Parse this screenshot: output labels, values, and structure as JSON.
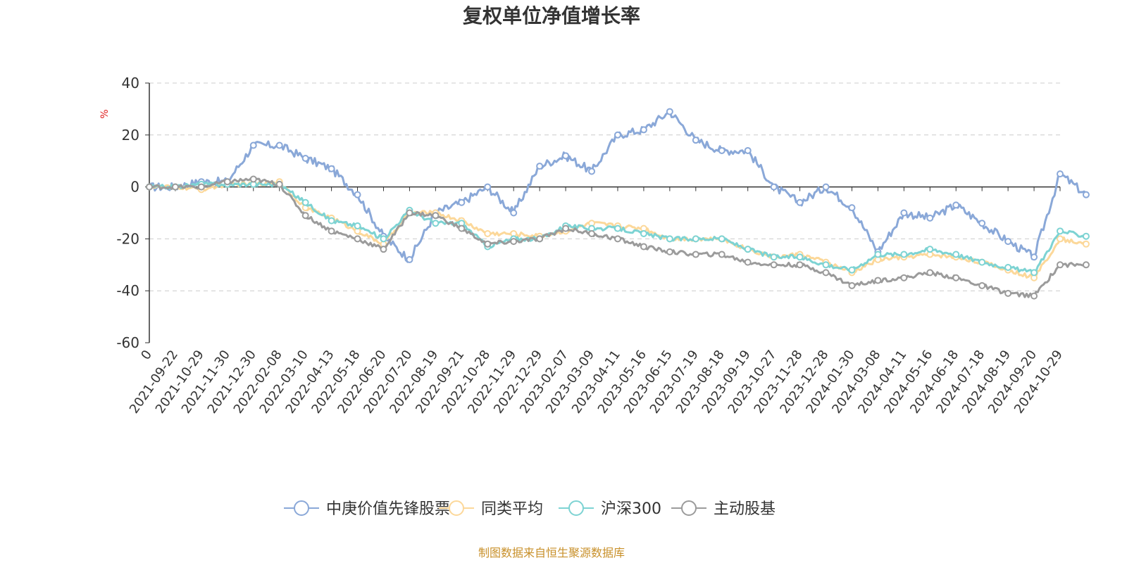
{
  "chart_data": {
    "type": "line",
    "title": "复权单位净值增长率",
    "ylabel": "%",
    "ylim": [
      -60,
      40
    ],
    "yticks": [
      "40",
      "20",
      "0",
      "-20",
      "-40",
      "-60"
    ],
    "xticks": [
      "0",
      "2021-09-22",
      "2021-10-29",
      "2021-11-30",
      "2021-12-30",
      "2022-02-08",
      "2022-03-10",
      "2022-04-13",
      "2022-05-18",
      "2022-06-20",
      "2022-07-20",
      "2022-08-19",
      "2022-09-21",
      "2022-10-28",
      "2022-11-29",
      "2022-12-29",
      "2023-02-07",
      "2023-03-09",
      "2023-04-11",
      "2023-05-16",
      "2023-06-15",
      "2023-07-19",
      "2023-08-18",
      "2023-09-19",
      "2023-10-27",
      "2023-11-28",
      "2023-12-28",
      "2024-01-30",
      "2024-03-08",
      "2024-04-11",
      "2024-05-16",
      "2024-06-18",
      "2024-07-18",
      "2024-08-19",
      "2024-09-20",
      "2024-10-29"
    ],
    "grid": true,
    "legend_position": "bottom",
    "series": [
      {
        "name": "中庚价值先锋股票",
        "color": "#8aa8d8",
        "values": [
          0,
          0,
          2,
          2,
          16,
          16,
          11,
          7,
          -3,
          -19,
          -28,
          -10,
          -6,
          0,
          -10,
          8,
          12,
          6,
          20,
          22,
          29,
          18,
          14,
          14,
          0,
          -6,
          0,
          -8,
          -25,
          -10,
          -12,
          -7,
          -14,
          -21,
          -27,
          5,
          -3
        ]
      },
      {
        "name": "同类平均",
        "color": "#fcd89a",
        "values": [
          0,
          0,
          -1,
          1,
          1,
          2,
          -8,
          -12,
          -17,
          -22,
          -10,
          -10,
          -13,
          -18,
          -18,
          -19,
          -17,
          -14,
          -15,
          -16,
          -20,
          -20,
          -20,
          -24,
          -27,
          -26,
          -29,
          -33,
          -28,
          -27,
          -26,
          -27,
          -29,
          -32,
          -35,
          -20,
          -22
        ]
      },
      {
        "name": "沪深300",
        "color": "#7dd3d3",
        "values": [
          0,
          0,
          1,
          1,
          1,
          1,
          -6,
          -13,
          -15,
          -20,
          -9,
          -14,
          -14,
          -23,
          -20,
          -20,
          -15,
          -16,
          -16,
          -18,
          -20,
          -20,
          -20,
          -24,
          -27,
          -27,
          -30,
          -32,
          -26,
          -26,
          -24,
          -26,
          -29,
          -31,
          -33,
          -17,
          -19
        ]
      },
      {
        "name": "主动股基",
        "color": "#9b9b9b",
        "values": [
          0,
          0,
          0,
          2,
          3,
          1,
          -11,
          -17,
          -20,
          -24,
          -10,
          -11,
          -16,
          -22,
          -21,
          -20,
          -16,
          -18,
          -20,
          -23,
          -25,
          -26,
          -26,
          -29,
          -30,
          -30,
          -33,
          -38,
          -36,
          -35,
          -33,
          -35,
          -38,
          -41,
          -42,
          -30,
          -30
        ]
      }
    ]
  },
  "legend": {
    "items": [
      {
        "name": "中庚价值先锋股票",
        "color": "#8aa8d8"
      },
      {
        "name": "同类平均",
        "color": "#fcd89a"
      },
      {
        "name": "沪深300",
        "color": "#7dd3d3"
      },
      {
        "name": "主动股基",
        "color": "#9b9b9b"
      }
    ]
  },
  "source": "制图数据来自恒生聚源数据库"
}
